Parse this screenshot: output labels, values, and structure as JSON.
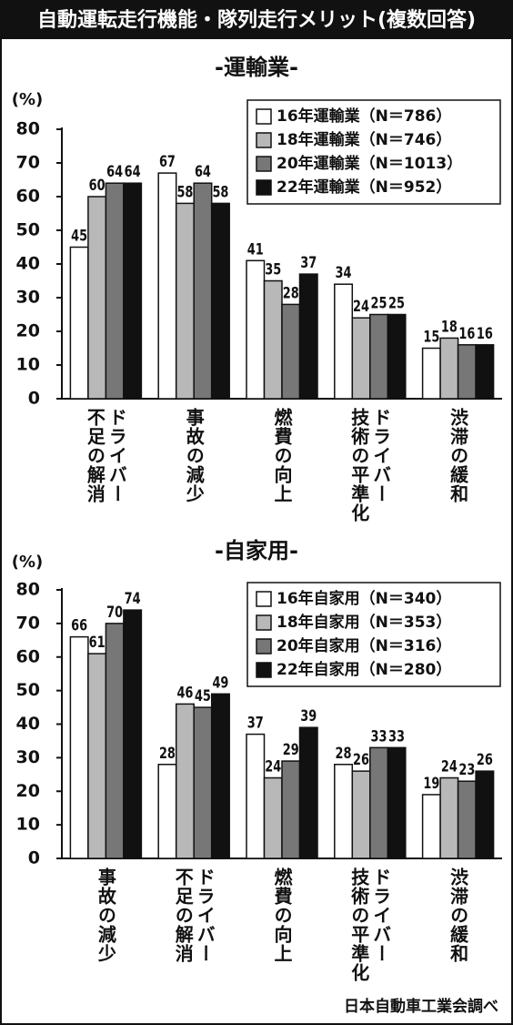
{
  "title": "自動運転走行機能・隊列走行メリット(複数回答)",
  "source": "日本自動車工業会調べ",
  "chart_data": [
    {
      "type": "bar",
      "title": "-運輸業-",
      "ylabel": "(%)",
      "categories": [
        "ドライバー\n不足の解消",
        "事故の減少",
        "燃費の向上",
        "ドライバー\n技術の平準化",
        "渋滞の緩和"
      ],
      "series": [
        {
          "name": "16年運輸業（N＝786）",
          "color": "#ffffff",
          "values": [
            45,
            67,
            41,
            34,
            15
          ]
        },
        {
          "name": "18年運輸業（N＝746）",
          "color": "#b8b8b8",
          "values": [
            60,
            58,
            35,
            24,
            18
          ]
        },
        {
          "name": "20年運輸業（N＝1013）",
          "color": "#777777",
          "values": [
            64,
            64,
            28,
            25,
            16
          ]
        },
        {
          "name": "22年運輸業（N＝952）",
          "color": "#111111",
          "values": [
            64,
            58,
            37,
            25,
            16
          ]
        }
      ],
      "ylim": [
        0,
        80
      ],
      "yticks": [
        0,
        10,
        20,
        30,
        40,
        50,
        60,
        70,
        80
      ],
      "legend": "upper right"
    },
    {
      "type": "bar",
      "title": "-自家用-",
      "ylabel": "(%)",
      "categories": [
        "事故の減少",
        "ドライバー\n不足の解消",
        "燃費の向上",
        "ドライバー\n技術の平準化",
        "渋滞の緩和"
      ],
      "series": [
        {
          "name": "16年自家用（N＝340）",
          "color": "#ffffff",
          "values": [
            66,
            28,
            37,
            28,
            19
          ]
        },
        {
          "name": "18年自家用（N＝353）",
          "color": "#b8b8b8",
          "values": [
            61,
            46,
            24,
            26,
            24
          ]
        },
        {
          "name": "20年自家用（N＝316）",
          "color": "#777777",
          "values": [
            70,
            45,
            29,
            33,
            23
          ]
        },
        {
          "name": "22年自家用（N＝280）",
          "color": "#111111",
          "values": [
            74,
            49,
            39,
            33,
            26
          ]
        }
      ],
      "ylim": [
        0,
        80
      ],
      "yticks": [
        0,
        10,
        20,
        30,
        40,
        50,
        60,
        70,
        80
      ],
      "legend": "upper right"
    }
  ]
}
